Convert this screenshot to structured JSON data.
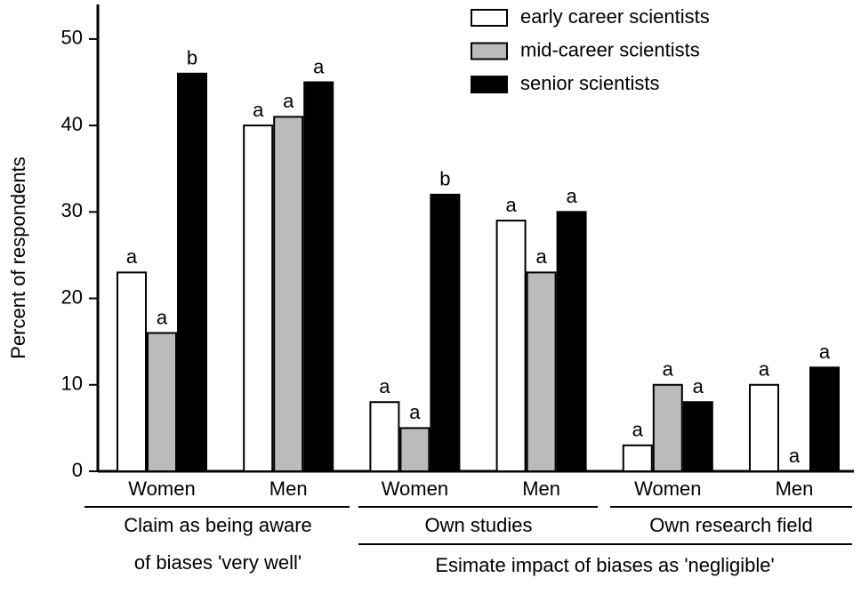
{
  "chart_data": {
    "type": "bar",
    "y_label": "Percent of respondents",
    "categories": [
      "Women",
      "Men",
      "Women",
      "Men",
      "Women",
      "Men"
    ],
    "group_labels": [
      [
        "Claim as being aware",
        "of biases 'very well'"
      ],
      [
        "Own studies"
      ],
      [
        "Own research field"
      ]
    ],
    "outer_label": "Esimate impact of biases as 'negligible'",
    "series": [
      {
        "name": "early career scientists",
        "color": "#ffffff",
        "values": [
          23,
          40,
          8,
          29,
          3,
          10
        ],
        "letters": [
          "a",
          "a",
          "a",
          "a",
          "a",
          "a"
        ]
      },
      {
        "name": "mid-career scientists",
        "color": "#bbbbbb",
        "values": [
          16,
          41,
          5,
          23,
          10,
          0
        ],
        "letters": [
          "a",
          "a",
          "a",
          "a",
          "a",
          "a"
        ]
      },
      {
        "name": "senior scientists",
        "color": "#000000",
        "values": [
          46,
          45,
          32,
          30,
          8,
          12
        ],
        "letters": [
          "b",
          "a",
          "b",
          "a",
          "a",
          "a"
        ]
      }
    ],
    "ylim": [
      0,
      54
    ],
    "yticks": [
      0,
      10,
      20,
      30,
      40,
      50
    ],
    "legend": "top-right"
  }
}
